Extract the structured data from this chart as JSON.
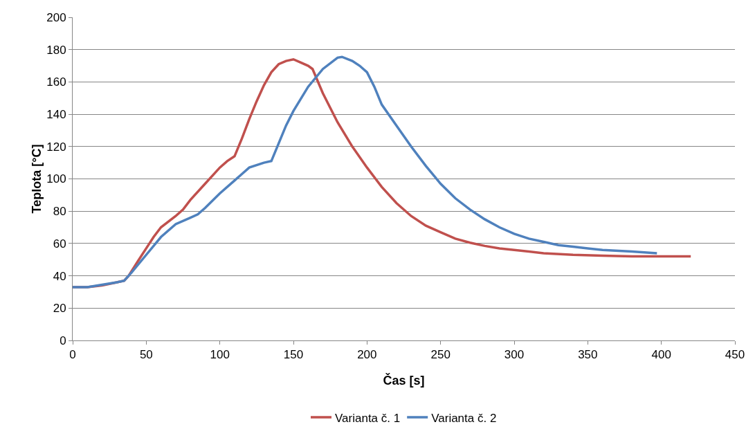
{
  "chart_data": {
    "type": "line",
    "xlabel": "Čas [s]",
    "ylabel": "Teplota [°C]",
    "xlim": [
      0,
      450
    ],
    "xticks": [
      0,
      50,
      100,
      150,
      200,
      250,
      300,
      350,
      400,
      450
    ],
    "ylim": [
      0,
      200
    ],
    "yticks": [
      0,
      20,
      40,
      60,
      80,
      100,
      120,
      140,
      160,
      180,
      200
    ],
    "grid": "y",
    "legend": "bottom",
    "marker": "none",
    "line_style": "solid",
    "series": [
      {
        "name": "Varianta č. 1",
        "color": "#c0504d",
        "x": [
          0,
          10,
          20,
          30,
          35,
          38,
          45,
          50,
          55,
          60,
          70,
          75,
          80,
          90,
          100,
          105,
          110,
          115,
          120,
          125,
          130,
          135,
          140,
          145,
          150,
          155,
          160,
          163,
          170,
          180,
          190,
          200,
          210,
          220,
          230,
          240,
          250,
          260,
          270,
          280,
          290,
          300,
          320,
          340,
          360,
          380,
          400,
          420
        ],
        "values": [
          33,
          33,
          34,
          36,
          37,
          40,
          50,
          57,
          64,
          70,
          77,
          81,
          87,
          97,
          107,
          111,
          114,
          125,
          137,
          148,
          158,
          166,
          171,
          173,
          174,
          172,
          170,
          168,
          153,
          135,
          120,
          107,
          95,
          85,
          77,
          71,
          67,
          63,
          60.5,
          58.5,
          57,
          56,
          54,
          53,
          52.5,
          52,
          52,
          52
        ]
      },
      {
        "name": "Varianta č. 2",
        "color": "#4f81bd",
        "x": [
          0,
          10,
          20,
          30,
          35,
          40,
          50,
          60,
          70,
          80,
          85,
          90,
          100,
          110,
          115,
          120,
          130,
          135,
          140,
          145,
          150,
          160,
          170,
          180,
          183,
          190,
          195,
          200,
          205,
          210,
          220,
          230,
          240,
          250,
          260,
          270,
          280,
          290,
          300,
          310,
          320,
          330,
          340,
          350,
          360,
          380,
          397
        ],
        "values": [
          33,
          33,
          34.5,
          36,
          37,
          42,
          53,
          64,
          72,
          76,
          78,
          82,
          91,
          99,
          103,
          107,
          110,
          111,
          122,
          133,
          142,
          157,
          168,
          175,
          175.5,
          173,
          170,
          166,
          157,
          146,
          133,
          120,
          108,
          97,
          88,
          81,
          75,
          70,
          66,
          63,
          61,
          59,
          58,
          57,
          56,
          55,
          54
        ]
      }
    ]
  }
}
